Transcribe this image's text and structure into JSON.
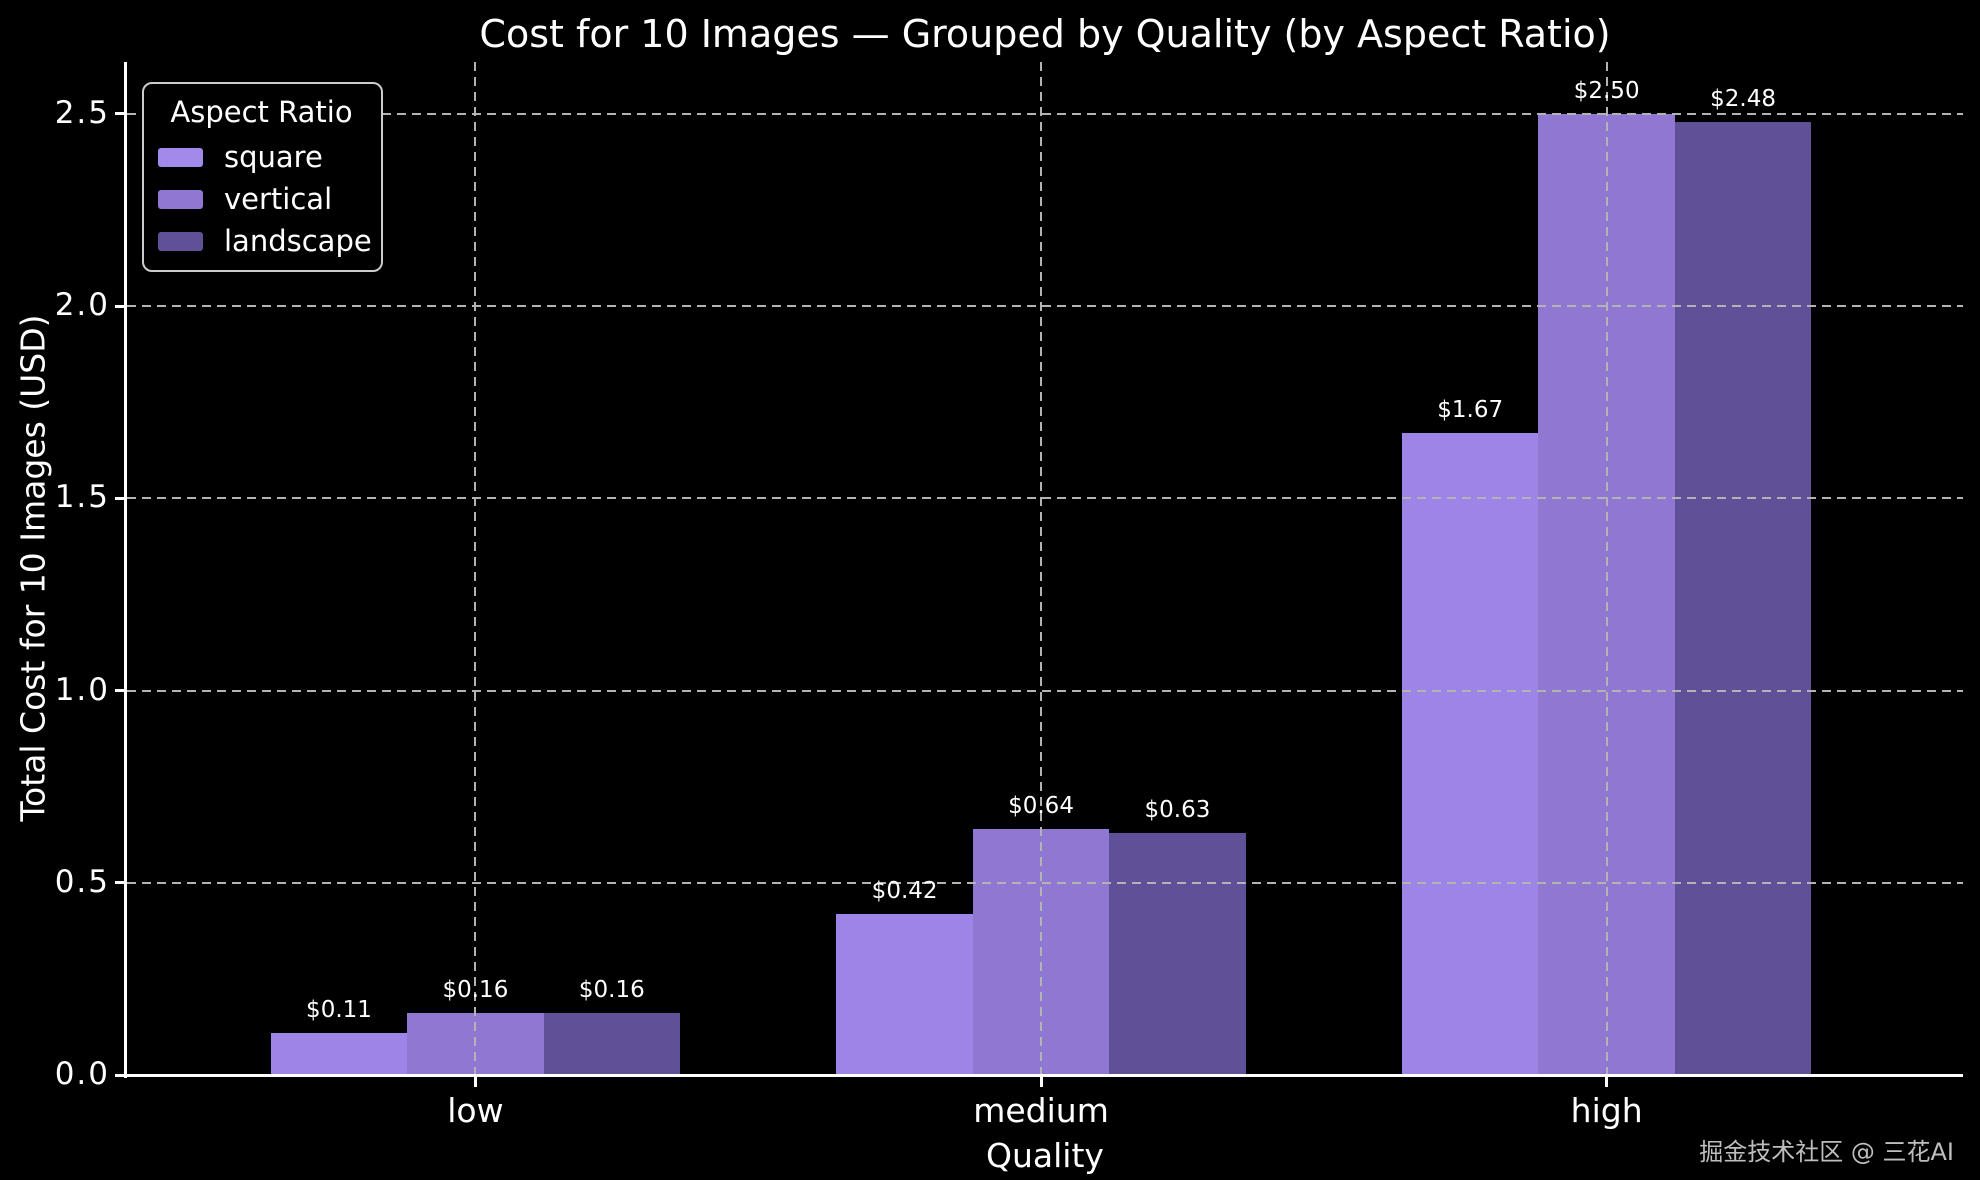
{
  "title": "Cost for 10 Images — Grouped by Quality (by Aspect Ratio)",
  "watermark": "掘金技术社区 @ 三花AI",
  "legend": {
    "title": "Aspect Ratio",
    "items": [
      {
        "label": "square",
        "color": "#a18ae9"
      },
      {
        "label": "vertical",
        "color": "#8f77d2"
      },
      {
        "label": "landscape",
        "color": "#5f5098"
      }
    ]
  },
  "chart_data": {
    "type": "bar",
    "title": "Cost for 10 Images — Grouped by Quality (by Aspect Ratio)",
    "xlabel": "Quality",
    "ylabel": "Total Cost for 10 Images (USD)",
    "categories": [
      "low",
      "medium",
      "high"
    ],
    "series": [
      {
        "name": "square",
        "color": "#9d85e8",
        "values": [
          0.11,
          0.42,
          1.67
        ],
        "labels": [
          "$0.11",
          "$0.42",
          "$1.67"
        ]
      },
      {
        "name": "vertical",
        "color": "#8f77d2",
        "values": [
          0.16,
          0.64,
          2.5
        ],
        "labels": [
          "$0.16",
          "$0.64",
          "$2.50"
        ]
      },
      {
        "name": "landscape",
        "color": "#5f5098",
        "values": [
          0.16,
          0.63,
          2.48
        ],
        "labels": [
          "$0.16",
          "$0.63",
          "$2.48"
        ]
      }
    ],
    "yticks": [
      0.0,
      0.5,
      1.0,
      1.5,
      2.0,
      2.5
    ],
    "ytick_labels": [
      "0.0",
      "0.5",
      "1.0",
      "1.5",
      "2.0",
      "2.5"
    ],
    "ylim": [
      0,
      2.635
    ],
    "grid": true,
    "grid_style": "dashed",
    "background": "#000000",
    "text_color": "#ffffff",
    "legend_position": "upper left"
  }
}
